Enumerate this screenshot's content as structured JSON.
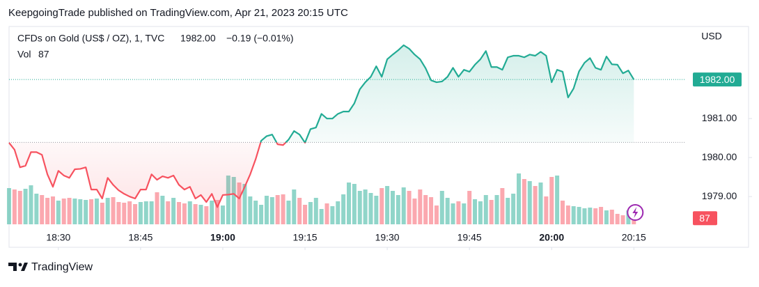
{
  "header": {
    "published": "KeepgoingTrade published on TradingView.com, Apr 21, 2023 20:15 UTC"
  },
  "footer": {
    "brand": "TradingView"
  },
  "chart_data": {
    "type": "baseline",
    "currency": "USD",
    "x": [
      "18:21",
      "18:22",
      "18:23",
      "18:24",
      "18:25",
      "18:26",
      "18:27",
      "18:28",
      "18:29",
      "18:30",
      "18:31",
      "18:32",
      "18:33",
      "18:34",
      "18:35",
      "18:36",
      "18:37",
      "18:38",
      "18:39",
      "18:40",
      "18:41",
      "18:42",
      "18:43",
      "18:44",
      "18:45",
      "18:46",
      "18:47",
      "18:48",
      "18:49",
      "18:50",
      "18:51",
      "18:52",
      "18:53",
      "18:54",
      "18:55",
      "18:56",
      "18:57",
      "18:58",
      "18:59",
      "19:00",
      "19:01",
      "19:02",
      "19:03",
      "19:04",
      "19:05",
      "19:06",
      "19:07",
      "19:08",
      "19:09",
      "19:10",
      "19:11",
      "19:12",
      "19:13",
      "19:14",
      "19:15",
      "19:16",
      "19:17",
      "19:18",
      "19:19",
      "19:20",
      "19:21",
      "19:22",
      "19:23",
      "19:24",
      "19:25",
      "19:26",
      "19:27",
      "19:28",
      "19:29",
      "19:30",
      "19:31",
      "19:32",
      "19:33",
      "19:34",
      "19:35",
      "19:36",
      "19:37",
      "19:38",
      "19:39",
      "19:40",
      "19:41",
      "19:42",
      "19:43",
      "19:44",
      "19:45",
      "19:46",
      "19:47",
      "19:48",
      "19:49",
      "19:50",
      "19:51",
      "19:52",
      "19:53",
      "19:54",
      "19:55",
      "19:56",
      "19:57",
      "19:58",
      "19:59",
      "20:00",
      "20:01",
      "20:02",
      "20:03",
      "20:04",
      "20:05",
      "20:06",
      "20:07",
      "20:08",
      "20:09",
      "20:10",
      "20:11",
      "20:12",
      "20:13",
      "20:14",
      "20:15"
    ],
    "xlim": [
      "18:21",
      "20:25"
    ],
    "xticks": [
      "18:30",
      "18:45",
      "19:00",
      "19:15",
      "19:30",
      "19:45",
      "20:00",
      "20:15"
    ],
    "ylim": [
      1977.7,
      1983.36
    ],
    "yticks": [
      {
        "value": 1979,
        "label": "1979.00"
      },
      {
        "value": 1980,
        "label": "1980.00"
      },
      {
        "value": 1981,
        "label": "1981.00"
      }
    ],
    "baseline": 1980.39,
    "up_color": "#22ab94",
    "down_color": "#f7525f",
    "series": [
      {
        "name": "CFDs on Gold (US$ / OZ), 1, TVC",
        "last_label": "1982.00",
        "change_label": "−0.19 (−0.01%)",
        "values": [
          1980.38,
          1980.2,
          1979.75,
          1979.79,
          1980.14,
          1980.14,
          1980.07,
          1979.57,
          1979.25,
          1979.66,
          1979.54,
          1979.48,
          1979.7,
          1979.71,
          1979.75,
          1979.18,
          1979.18,
          1978.95,
          1979.48,
          1979.3,
          1979.16,
          1979.07,
          1979.0,
          1978.95,
          1979.18,
          1979.18,
          1979.57,
          1979.43,
          1979.52,
          1979.48,
          1979.54,
          1979.3,
          1979.18,
          1979.25,
          1978.95,
          1979.04,
          1978.86,
          1979.07,
          1978.73,
          1979.04,
          1979.05,
          1979.07,
          1978.95,
          1979.25,
          1979.57,
          1979.96,
          1980.43,
          1980.55,
          1980.59,
          1980.34,
          1980.32,
          1980.46,
          1980.68,
          1980.59,
          1980.38,
          1980.73,
          1980.77,
          1981.12,
          1981.0,
          1981.0,
          1981.12,
          1981.18,
          1981.18,
          1981.39,
          1981.75,
          1981.93,
          1982.07,
          1982.34,
          1982.07,
          1982.52,
          1982.64,
          1982.75,
          1982.88,
          1982.79,
          1982.64,
          1982.52,
          1982.29,
          1981.98,
          1981.93,
          1981.95,
          1982.07,
          1982.3,
          1982.07,
          1982.25,
          1982.2,
          1982.38,
          1982.52,
          1982.73,
          1982.32,
          1982.32,
          1982.25,
          1982.57,
          1982.61,
          1982.61,
          1982.57,
          1982.64,
          1982.61,
          1982.71,
          1982.61,
          1981.93,
          1982.25,
          1982.2,
          1981.54,
          1981.77,
          1982.21,
          1982.43,
          1982.55,
          1982.3,
          1982.25,
          1982.59,
          1982.39,
          1982.38,
          1982.16,
          1982.23,
          1982.0
        ]
      },
      {
        "name": "Vol",
        "axis": "volume",
        "ylim": [
          0,
          800
        ],
        "values": [
          520,
          500,
          480,
          510,
          560,
          440,
          420,
          380,
          400,
          340,
          370,
          380,
          370,
          360,
          350,
          360,
          370,
          310,
          380,
          390,
          320,
          310,
          330,
          290,
          320,
          330,
          330,
          460,
          410,
          330,
          380,
          320,
          300,
          330,
          290,
          280,
          260,
          340,
          350,
          270,
          700,
          680,
          600,
          580,
          400,
          340,
          280,
          410,
          390,
          420,
          430,
          340,
          500,
          380,
          280,
          320,
          380,
          220,
          300,
          260,
          330,
          430,
          600,
          580,
          480,
          500,
          450,
          410,
          520,
          550,
          480,
          420,
          530,
          480,
          370,
          500,
          420,
          390,
          270,
          480,
          380,
          300,
          330,
          300,
          480,
          360,
          330,
          420,
          350,
          420,
          520,
          380,
          440,
          730,
          650,
          620,
          550,
          600,
          400,
          680,
          700,
          340,
          270,
          260,
          250,
          230,
          240,
          230,
          250,
          200,
          210,
          150,
          130,
          200,
          87
        ]
      }
    ]
  }
}
